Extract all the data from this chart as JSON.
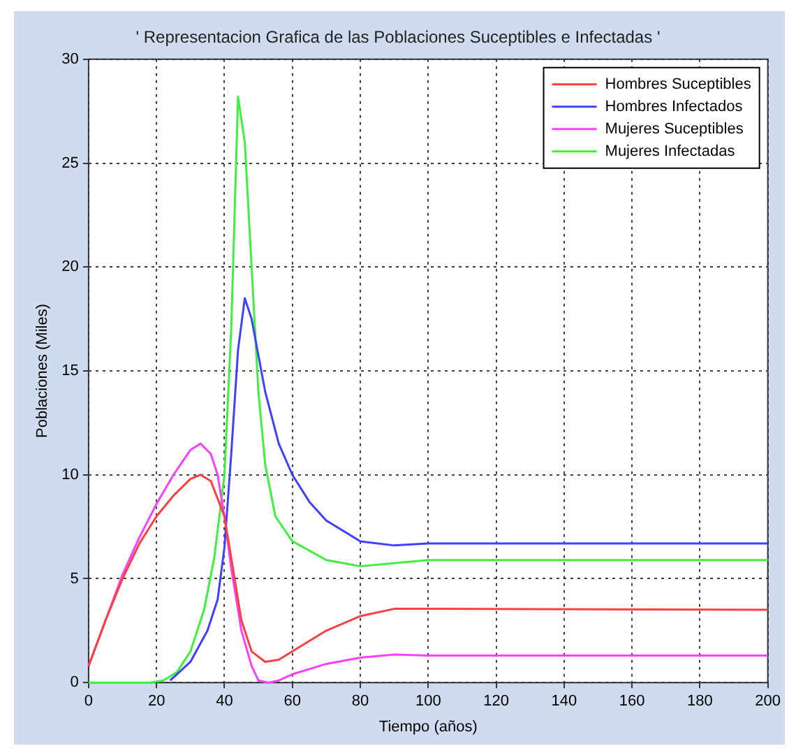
{
  "chart_data": {
    "type": "line",
    "title": "' Representacion Grafica de las Poblaciones Suceptibles e Infectadas '",
    "xlabel": "Tiempo (años)",
    "ylabel": "Poblaciones (Miles)",
    "xlim": [
      0,
      200
    ],
    "xticks": [
      0,
      20,
      40,
      60,
      80,
      100,
      120,
      140,
      160,
      180,
      200
    ],
    "ylim": [
      0,
      30
    ],
    "yticks": [
      0,
      5,
      10,
      15,
      20,
      25,
      30
    ],
    "grid": true,
    "legend": "top right",
    "marker": "none",
    "line_style": "solid",
    "series": [
      {
        "name": "Hombres Suceptibles",
        "color": "#ff4040",
        "x": [
          0,
          5,
          10,
          15,
          20,
          25,
          30,
          33,
          36,
          40,
          42,
          45,
          48,
          52,
          56,
          60,
          70,
          80,
          90,
          100,
          200
        ],
        "values": [
          0.8,
          3,
          5,
          6.7,
          8,
          9,
          9.8,
          10,
          9.7,
          8,
          6,
          3,
          1.5,
          1.0,
          1.1,
          1.5,
          2.5,
          3.2,
          3.55,
          3.55,
          3.5
        ]
      },
      {
        "name": "Hombres Infectados",
        "color": "#4040ff",
        "x": [
          24,
          30,
          35,
          38,
          40,
          42,
          44,
          46,
          48,
          52,
          56,
          60,
          65,
          70,
          80,
          90,
          100,
          200
        ],
        "values": [
          0.1,
          1,
          2.5,
          4,
          6.5,
          11,
          16,
          18.5,
          17.5,
          14,
          11.5,
          10,
          8.7,
          7.8,
          6.8,
          6.6,
          6.7,
          6.7
        ]
      },
      {
        "name": "Mujeres Suceptibles",
        "color": "#ff40ff",
        "x": [
          0,
          5,
          10,
          15,
          20,
          25,
          30,
          33,
          36,
          38,
          40,
          42,
          45,
          48,
          50,
          53,
          56,
          60,
          70,
          80,
          90,
          100,
          200
        ],
        "values": [
          0.8,
          3,
          5.2,
          7,
          8.6,
          10,
          11.2,
          11.5,
          11,
          10,
          8,
          5.5,
          2.5,
          0.8,
          0.1,
          0,
          0.1,
          0.4,
          0.9,
          1.2,
          1.35,
          1.3,
          1.3
        ]
      },
      {
        "name": "Mujeres Infectadas",
        "color": "#40f040",
        "x": [
          0,
          18,
          22,
          26,
          30,
          34,
          37,
          40,
          42,
          44,
          46,
          48,
          50,
          52,
          55,
          60,
          70,
          80,
          90,
          100,
          200
        ],
        "values": [
          0,
          0,
          0.1,
          0.5,
          1.5,
          3.5,
          6,
          10,
          17,
          28.2,
          26,
          20,
          14,
          10.5,
          8,
          6.8,
          5.9,
          5.6,
          5.75,
          5.9,
          5.9
        ]
      }
    ]
  }
}
